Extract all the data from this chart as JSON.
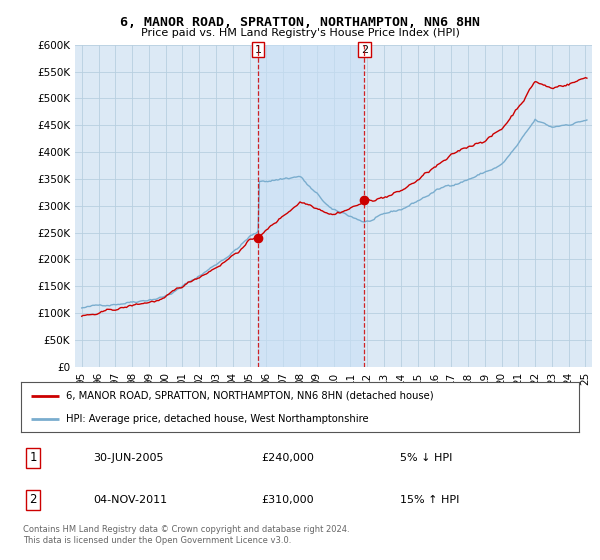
{
  "title": "6, MANOR ROAD, SPRATTON, NORTHAMPTON, NN6 8HN",
  "subtitle": "Price paid vs. HM Land Registry's House Price Index (HPI)",
  "legend_line1": "6, MANOR ROAD, SPRATTON, NORTHAMPTON, NN6 8HN (detached house)",
  "legend_line2": "HPI: Average price, detached house, West Northamptonshire",
  "transaction1_date": "30-JUN-2005",
  "transaction1_price": "£240,000",
  "transaction1_hpi": "5% ↓ HPI",
  "transaction2_date": "04-NOV-2011",
  "transaction2_price": "£310,000",
  "transaction2_hpi": "15% ↑ HPI",
  "footnote": "Contains HM Land Registry data © Crown copyright and database right 2024.\nThis data is licensed under the Open Government Licence v3.0.",
  "background_color": "#ffffff",
  "plot_bg_color": "#dce9f5",
  "highlight_bg_color": "#e8f2fc",
  "grid_color": "#c8d8e8",
  "red_color": "#cc0000",
  "blue_color": "#7aadce",
  "marker1_year": 2005.5,
  "marker1_y": 240000,
  "marker2_year": 2011.84,
  "marker2_y": 310000,
  "vline1_x": 2005.5,
  "vline2_x": 2011.84,
  "ylim_max": 600000,
  "xlim_start": 1994.6,
  "xlim_end": 2025.4,
  "yticks": [
    0,
    50000,
    100000,
    150000,
    200000,
    250000,
    300000,
    350000,
    400000,
    450000,
    500000,
    550000,
    600000
  ],
  "xtick_years": [
    1995,
    1996,
    1997,
    1998,
    1999,
    2000,
    2001,
    2002,
    2003,
    2004,
    2005,
    2006,
    2007,
    2008,
    2009,
    2010,
    2011,
    2012,
    2013,
    2014,
    2015,
    2016,
    2017,
    2018,
    2019,
    2020,
    2021,
    2022,
    2023,
    2024,
    2025
  ]
}
